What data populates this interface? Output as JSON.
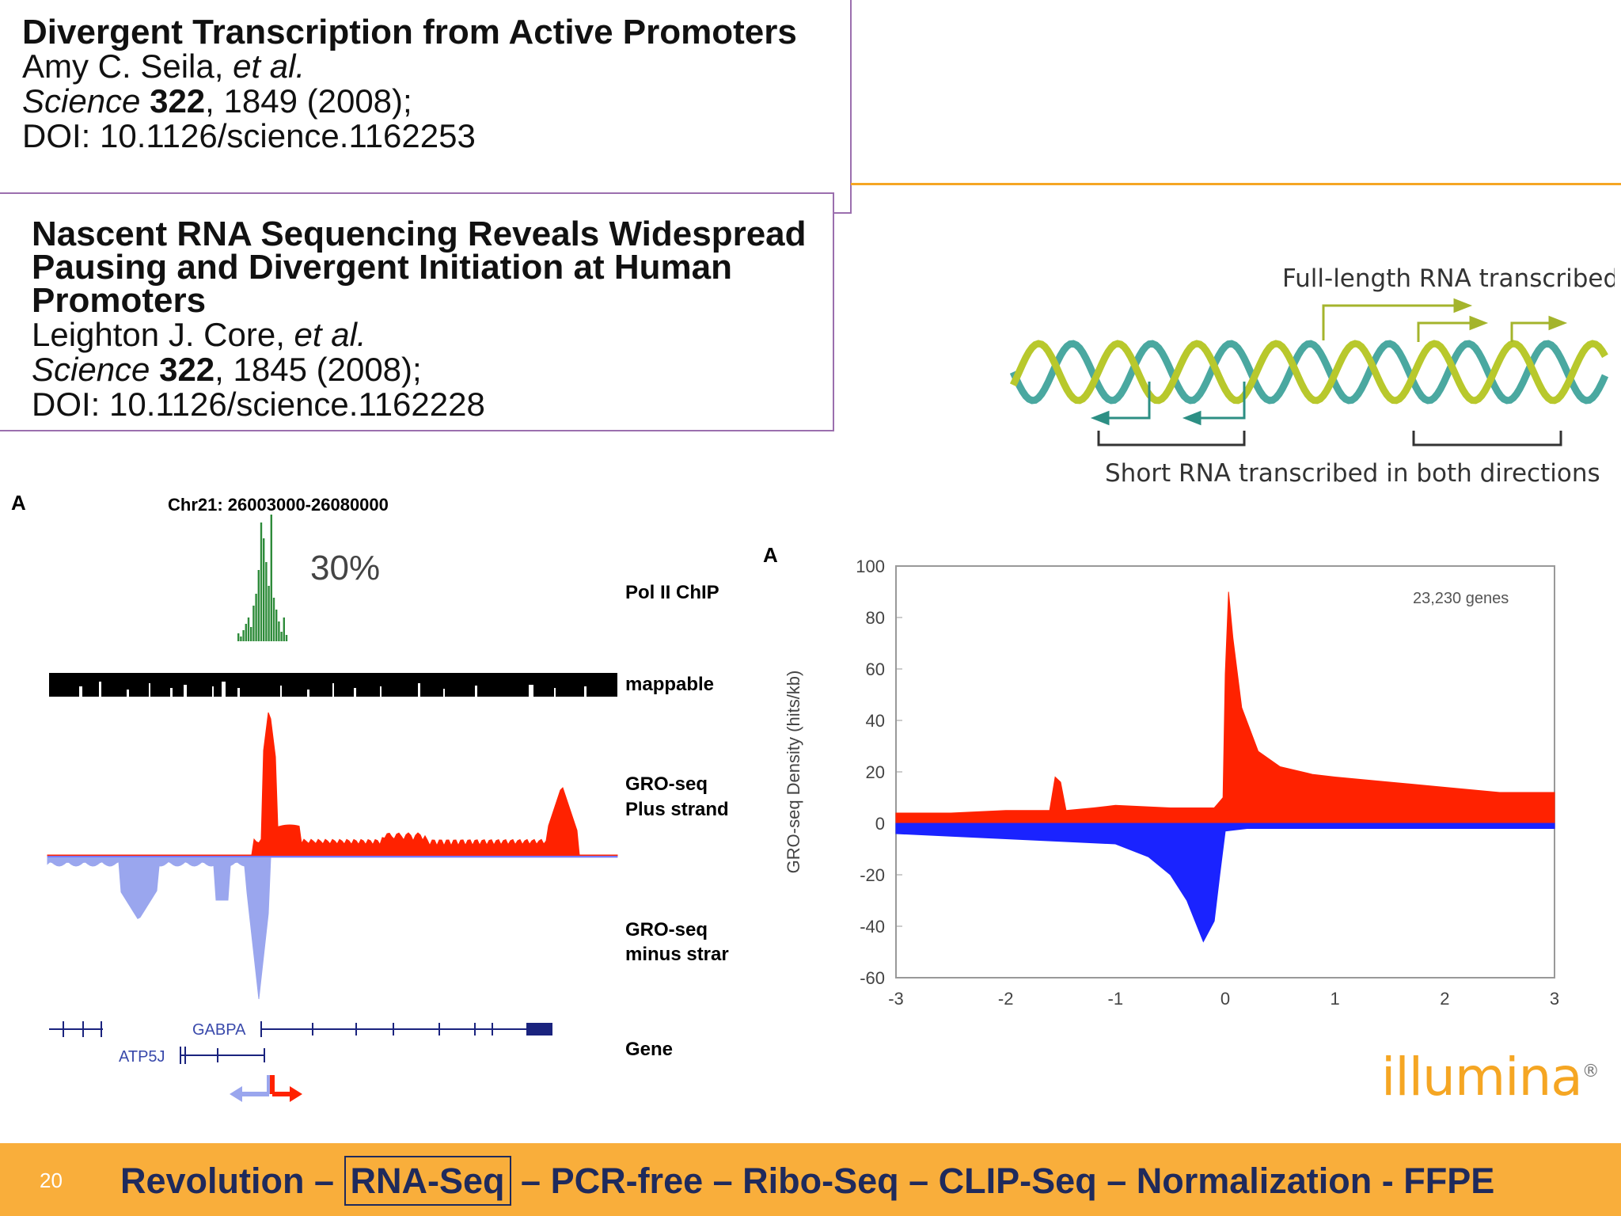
{
  "ref1": {
    "title": "Divergent Transcription from Active Promoters",
    "authors_name": "Amy C. Seila,",
    "authors_etal": " et al.",
    "journal": "Science",
    "volume": " 322",
    "pages_year": ", 1849 (2008);",
    "doi": "DOI: 10.1126/science.1162253"
  },
  "ref2": {
    "title_line1": "Nascent RNA Sequencing Reveals Widespread",
    "title_line2": "Pausing and Divergent Initiation at Human",
    "title_line3": "Promoters",
    "authors_name": "Leighton J. Core,",
    "authors_etal": " et al.",
    "journal": "Science",
    "volume": " 322",
    "pages_year": ", 1845 (2008);",
    "doi": "DOI: 10.1126/science.1162228"
  },
  "dna_diagram": {
    "top_label": "Full-length RNA transcribed",
    "bottom_label": "Short RNA transcribed in both directions",
    "colors": {
      "strand_a": "#4aa8a0",
      "strand_b": "#b8c82c",
      "arrow_full": "#a4b42c",
      "arrow_short": "#2d8f84"
    }
  },
  "browser_panel": {
    "panel_letter": "A",
    "region": "Chr21: 26003000-26080000",
    "percent": "30%",
    "tracks": {
      "polii": "Pol II ChIP",
      "mappable": "mappable",
      "gro_plus_1": "GRO-seq",
      "gro_plus_2": "Plus strand",
      "gro_minus_1": "GRO-seq",
      "gro_minus_2": "minus strar",
      "gene": "Gene"
    },
    "genes": {
      "gene1": "GABPA",
      "gene2": "ATP5J"
    },
    "colors": {
      "polii": "#2e8b3a",
      "plus": "#ff2200",
      "minus": "#9aa6ee",
      "gene": "#1a237e"
    }
  },
  "chart_data": {
    "type": "area",
    "panel_letter": "A",
    "annotation": "23,230 genes",
    "xlabel": "",
    "ylabel": "GRO-seq Density (hits/kb)",
    "xlim": [
      -3,
      3
    ],
    "ylim": [
      -60,
      100
    ],
    "xticks": [
      "-3",
      "-2",
      "-1",
      "0",
      "1",
      "2",
      "3"
    ],
    "yticks": [
      "100",
      "80",
      "60",
      "40",
      "20",
      "0",
      "-20",
      "-40",
      "-60"
    ],
    "series": [
      {
        "color": "#ff2200",
        "x": [
          -3,
          -2.5,
          -2,
          -1.6,
          -1.55,
          -1.5,
          -1.45,
          -1.2,
          -1.0,
          -0.5,
          -0.1,
          -0.02,
          0.0,
          0.03,
          0.07,
          0.15,
          0.3,
          0.5,
          0.8,
          1.0,
          1.5,
          2.0,
          2.5,
          3.0
        ],
        "values": [
          4,
          4,
          5,
          5,
          18,
          16,
          5,
          6,
          7,
          6,
          6,
          10,
          58,
          90,
          72,
          45,
          28,
          22,
          19,
          18,
          16,
          14,
          12,
          12
        ]
      },
      {
        "color": "#1a23ff",
        "x": [
          -3,
          -2.5,
          -2,
          -1.5,
          -1.0,
          -0.7,
          -0.5,
          -0.35,
          -0.2,
          -0.1,
          -0.05,
          0.0,
          0.2,
          1.0,
          2.0,
          3.0
        ],
        "values": [
          -4,
          -5,
          -6,
          -7,
          -8,
          -13,
          -20,
          -30,
          -46,
          -38,
          -20,
          -3,
          -2,
          -2,
          -2,
          -2
        ]
      }
    ]
  },
  "logo": {
    "text": "illumina",
    "reg": "®",
    "color": "#f5a623"
  },
  "footer": {
    "slide_number": "20",
    "pre": "Revolution – ",
    "highlight": "RNA-Seq",
    "post": " – PCR-free – Ribo-Seq – CLIP-Seq – Normalization - FFPE"
  }
}
